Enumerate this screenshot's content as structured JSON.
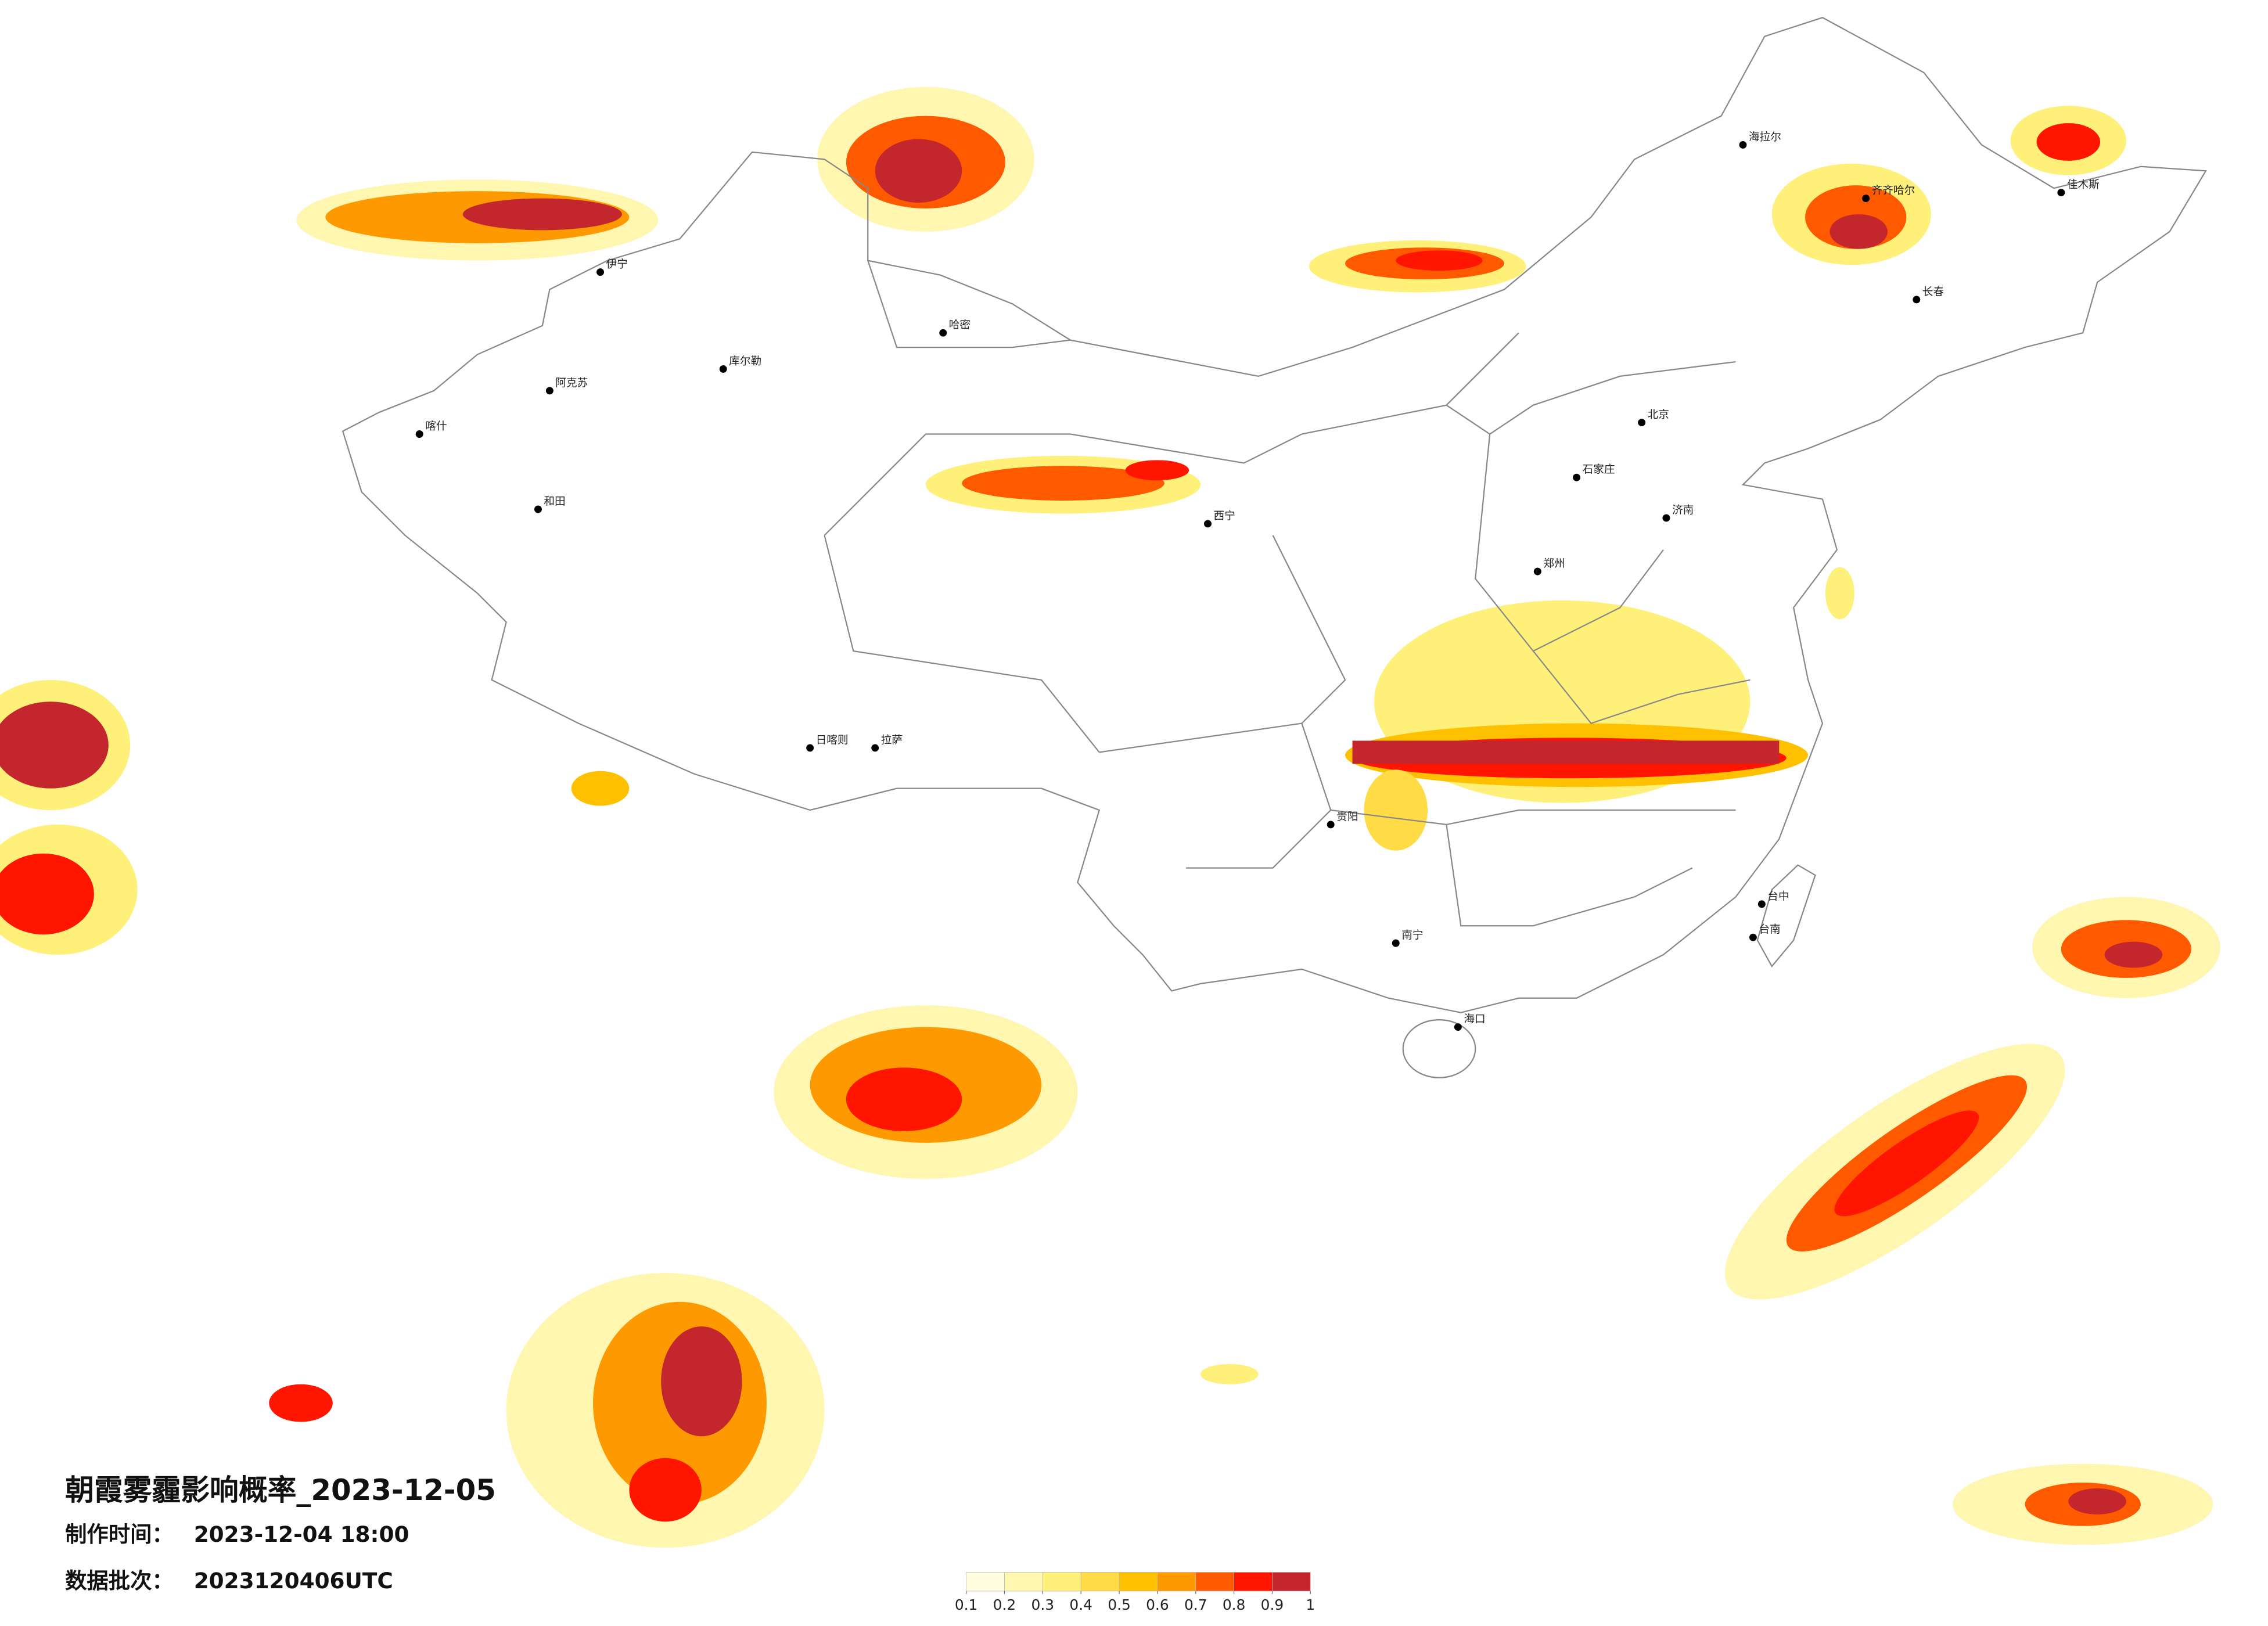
{
  "header": {
    "title": "朝霞雾霾影响概率_2023-12-05",
    "info": [
      {
        "label": "制作时间：",
        "value": "2023-12-04 18:00"
      },
      {
        "label": "数据批次：",
        "value": "2023120406UTC"
      }
    ]
  },
  "legend": {
    "colors": [
      "#fffce0",
      "#fff6b0",
      "#fff07a",
      "#ffdc45",
      "#ffc000",
      "#ff9900",
      "#ff5a00",
      "#ff1500",
      "#c4262e"
    ],
    "ticks": [
      0.1,
      0.2,
      0.3,
      0.4,
      0.5,
      0.6,
      0.7,
      0.8,
      0.9,
      1
    ]
  },
  "cities": [
    "伊宁",
    "阿克苏",
    "和田",
    "喀什",
    "哈密",
    "库尔勒",
    "海拉尔",
    "齐齐哈尔",
    "长春",
    "佳木斯",
    "北京",
    "石家庄",
    "济南",
    "郑州",
    "西宁",
    "拉萨",
    "日喀则",
    "贵阳",
    "南宁",
    "海口",
    "台中",
    "台南"
  ]
}
